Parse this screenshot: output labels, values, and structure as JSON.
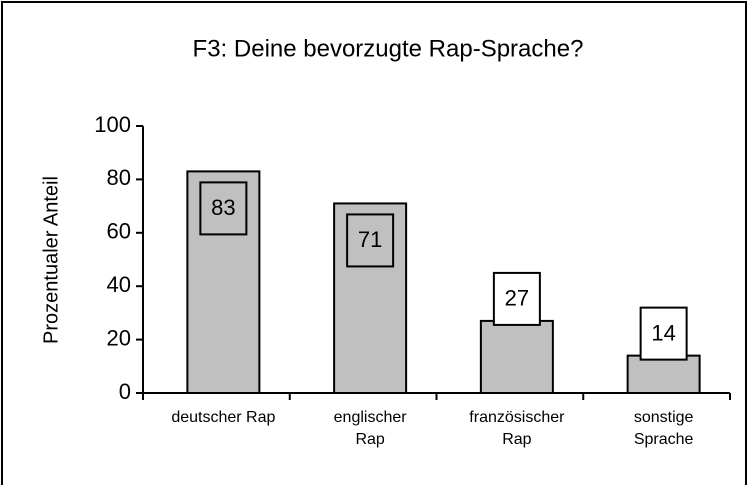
{
  "chart_data": {
    "type": "bar",
    "title": "F3: Deine bevorzugte Rap-Sprache?",
    "y_label": "Prozentualer Anteil",
    "categories": [
      "deutscher Rap",
      "englischer\nRap",
      "französischer\nRap",
      "sonstige\nSprache"
    ],
    "values": [
      83,
      71,
      27,
      14
    ],
    "color": "#c0c0c0",
    "ylim": [
      0,
      100
    ],
    "yticks": [
      0,
      20,
      40,
      60,
      80,
      100
    ]
  }
}
